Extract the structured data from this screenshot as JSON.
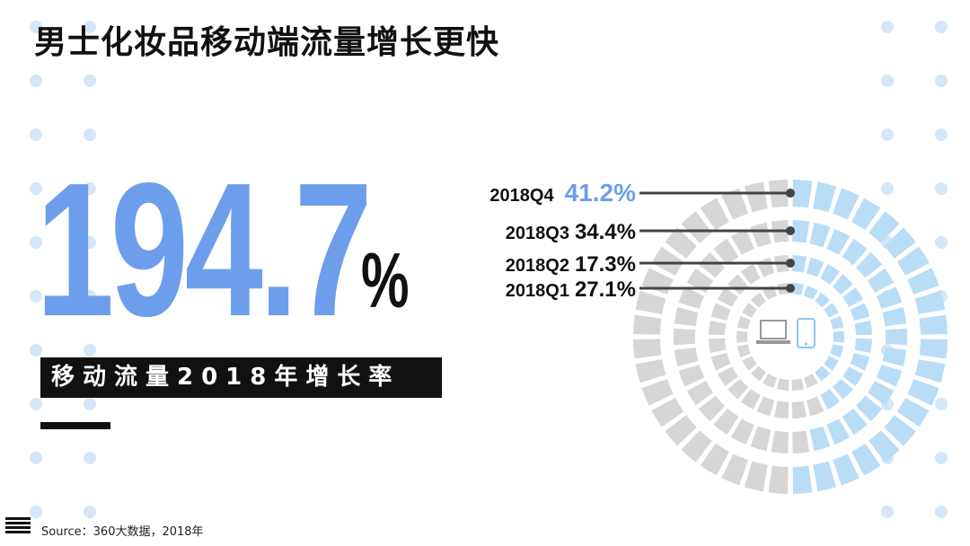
{
  "title": "男士化妆品移动端流量增长更快",
  "headline": {
    "value": "194.7",
    "unit": "%",
    "label": "移动流量2018年增长率"
  },
  "source": "Source：360大数据，2018年",
  "colors": {
    "accent": "#6d9eeb",
    "ring_blue": "#b9dcf7",
    "ring_gray": "#d6d6d8",
    "dots": "#d3e7f8"
  },
  "icons": [
    "laptop-icon",
    "smartphone-icon",
    "menu-icon"
  ],
  "chart_data": {
    "type": "radial-bar",
    "title": "",
    "categories": [
      "2018Q4",
      "2018Q3",
      "2018Q2",
      "2018Q1"
    ],
    "values": [
      41.2,
      34.4,
      17.3,
      27.1
    ],
    "value_labels": [
      "41.2%",
      "34.4%",
      "17.3%",
      "27.1%"
    ],
    "highlight": "2018Q4"
  }
}
